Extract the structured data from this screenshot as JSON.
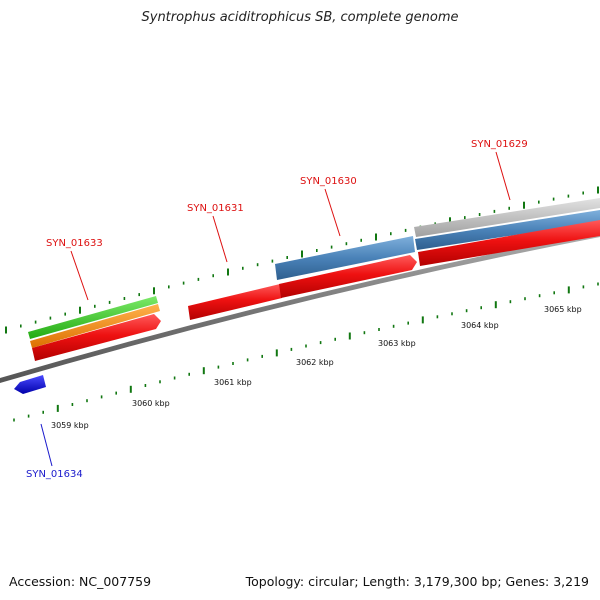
{
  "title": "Syntrophus aciditrophicus SB, complete genome",
  "footer": {
    "accession": "Accession: NC_007759",
    "summary": "Topology: circular; Length: 3,179,300 bp; Genes: 3,219"
  },
  "scale_labels": [
    "3059 kbp",
    "3060 kbp",
    "3061 kbp",
    "3062 kbp",
    "3063 kbp",
    "3064 kbp",
    "3065 kbp"
  ],
  "gene_labels": {
    "syn_01633": "SYN_01633",
    "syn_01631": "SYN_01631",
    "syn_01630": "SYN_01630",
    "syn_01629": "SYN_01629",
    "syn_01634": "SYN_01634"
  },
  "colors": {
    "forward_label": "#dd1111",
    "reverse_label": "#1a1acc",
    "cds": "#ee1111",
    "blue_feature": "#4a82b8",
    "green_feature": "#33cc22",
    "orange_feature": "#ff8800",
    "gray_feature": "#bbbbbb",
    "backbone": "#777777",
    "tick": "#117711"
  }
}
